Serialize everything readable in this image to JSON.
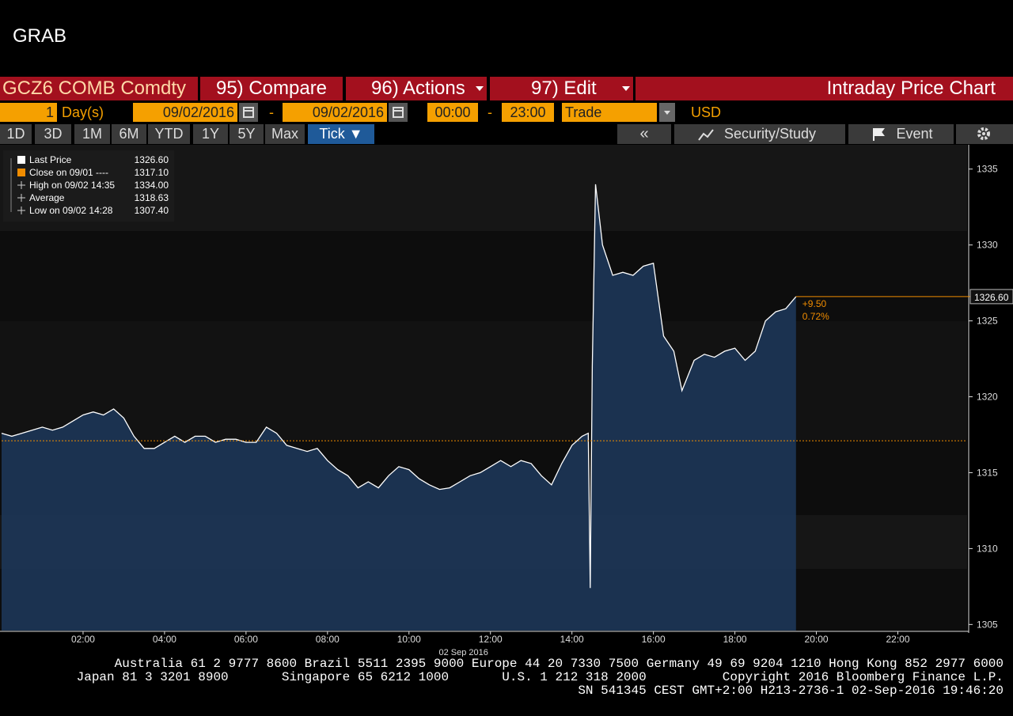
{
  "header": {
    "title": "GRAB"
  },
  "toolbar": {
    "security": "GCZ6 COMB Comdty",
    "compare": "95) Compare",
    "actions": "96) Actions",
    "edit": "97) Edit",
    "chart_name": "Intraday Price Chart"
  },
  "settings": {
    "period_count": "1",
    "period_unit": "Day(s)",
    "start_date": "09/02/2016",
    "date_sep": "-",
    "end_date": "09/02/2016",
    "start_time": "00:00",
    "time_sep": "-",
    "end_time": "23:00",
    "field": "Trade",
    "currency": "USD"
  },
  "ranges": [
    "1D",
    "3D",
    "1M",
    "6M",
    "YTD",
    "1Y",
    "5Y",
    "Max",
    "Tick ▼"
  ],
  "tools": {
    "back": "«",
    "study": "Security/Study",
    "event": "Event"
  },
  "chart_data": {
    "type": "line",
    "legend": [
      {
        "label": "Last Price",
        "value": 1326.6,
        "value_label": "1326.60"
      },
      {
        "label": "Close on 09/01 ----",
        "value": 1317.1,
        "value_label": "1317.10"
      },
      {
        "label": "High on 09/02 14:35",
        "value": 1334.0,
        "value_label": "1334.00"
      },
      {
        "label": "Average",
        "value": 1318.63,
        "value_label": "1318.63"
      },
      {
        "label": "Low on 09/02 14:28",
        "value": 1307.4,
        "value_label": "1307.40"
      }
    ],
    "change_label": "+9.50",
    "change_pct_label": "0.72%",
    "date_label": "02 Sep 2016",
    "x": [
      0,
      0.25,
      0.5,
      0.75,
      1,
      1.25,
      1.5,
      1.75,
      2,
      2.25,
      2.5,
      2.75,
      3,
      3.25,
      3.5,
      3.75,
      4,
      4.25,
      4.5,
      4.75,
      5,
      5.25,
      5.5,
      5.75,
      6,
      6.25,
      6.5,
      6.75,
      7,
      7.25,
      7.5,
      7.75,
      8,
      8.25,
      8.5,
      8.75,
      9,
      9.25,
      9.5,
      9.75,
      10,
      10.25,
      10.5,
      10.75,
      11,
      11.25,
      11.5,
      11.75,
      12,
      12.25,
      12.5,
      12.75,
      13,
      13.25,
      13.5,
      13.75,
      14,
      14.25,
      14.4,
      14.45,
      14.5,
      14.58,
      14.75,
      15,
      15.25,
      15.5,
      15.75,
      16,
      16.25,
      16.5,
      16.7,
      17,
      17.25,
      17.5,
      17.75,
      18,
      18.25,
      18.5,
      18.75,
      19,
      19.25,
      19.5
    ],
    "series": [
      {
        "color": "#ffffff",
        "area_color": "#1d3658",
        "values": [
          1317.6,
          1317.4,
          1317.6,
          1317.8,
          1318.0,
          1317.8,
          1318.0,
          1318.4,
          1318.8,
          1319.0,
          1318.8,
          1319.2,
          1318.6,
          1317.4,
          1316.6,
          1316.6,
          1317.0,
          1317.4,
          1317.0,
          1317.4,
          1317.4,
          1317.0,
          1317.2,
          1317.2,
          1317.0,
          1317.0,
          1318.0,
          1317.6,
          1316.8,
          1316.6,
          1316.4,
          1316.6,
          1315.8,
          1315.2,
          1314.8,
          1314.0,
          1314.4,
          1314.0,
          1314.8,
          1315.4,
          1315.2,
          1314.6,
          1314.2,
          1313.9,
          1314.0,
          1314.4,
          1314.8,
          1315.0,
          1315.4,
          1315.8,
          1315.4,
          1315.8,
          1315.6,
          1314.8,
          1314.2,
          1315.6,
          1316.8,
          1317.4,
          1317.6,
          1307.4,
          1322.0,
          1334.0,
          1330.0,
          1328.0,
          1328.2,
          1328.0,
          1328.6,
          1328.8,
          1324.0,
          1323.0,
          1320.4,
          1322.4,
          1322.8,
          1322.6,
          1323.0,
          1323.2,
          1322.4,
          1323.0,
          1325.0,
          1325.6,
          1325.8,
          1326.6
        ]
      }
    ],
    "xlim": [
      0,
      23.7
    ],
    "xticks": [
      {
        "value": 2,
        "label": "02:00"
      },
      {
        "value": 4,
        "label": "04:00"
      },
      {
        "value": 6,
        "label": "06:00"
      },
      {
        "value": 8,
        "label": "08:00"
      },
      {
        "value": 10,
        "label": "10:00"
      },
      {
        "value": 12,
        "label": "12:00"
      },
      {
        "value": 14,
        "label": "14:00"
      },
      {
        "value": 16,
        "label": "16:00"
      },
      {
        "value": 18,
        "label": "18:00"
      },
      {
        "value": 20,
        "label": "20:00"
      },
      {
        "value": 22,
        "label": "22:00"
      }
    ],
    "ylim": [
      1304.6,
      1336.6
    ],
    "yticks": [
      1305,
      1310,
      1315,
      1320,
      1325,
      1330,
      1335
    ],
    "reference_color": "#f08c00"
  },
  "footer": {
    "lines": [
      "Australia 61 2 9777 8600 Brazil 5511 2395 9000 Europe 44 20 7330 7500 Germany 49 69 9204 1210 Hong Kong 852 2977 6000",
      "Japan 81 3 3201 8900       Singapore 65 6212 1000       U.S. 1 212 318 2000          Copyright 2016 Bloomberg Finance L.P.",
      "SN 541345 CEST GMT+2:00 H213-2736-1 02-Sep-2016 19:46:20"
    ]
  }
}
